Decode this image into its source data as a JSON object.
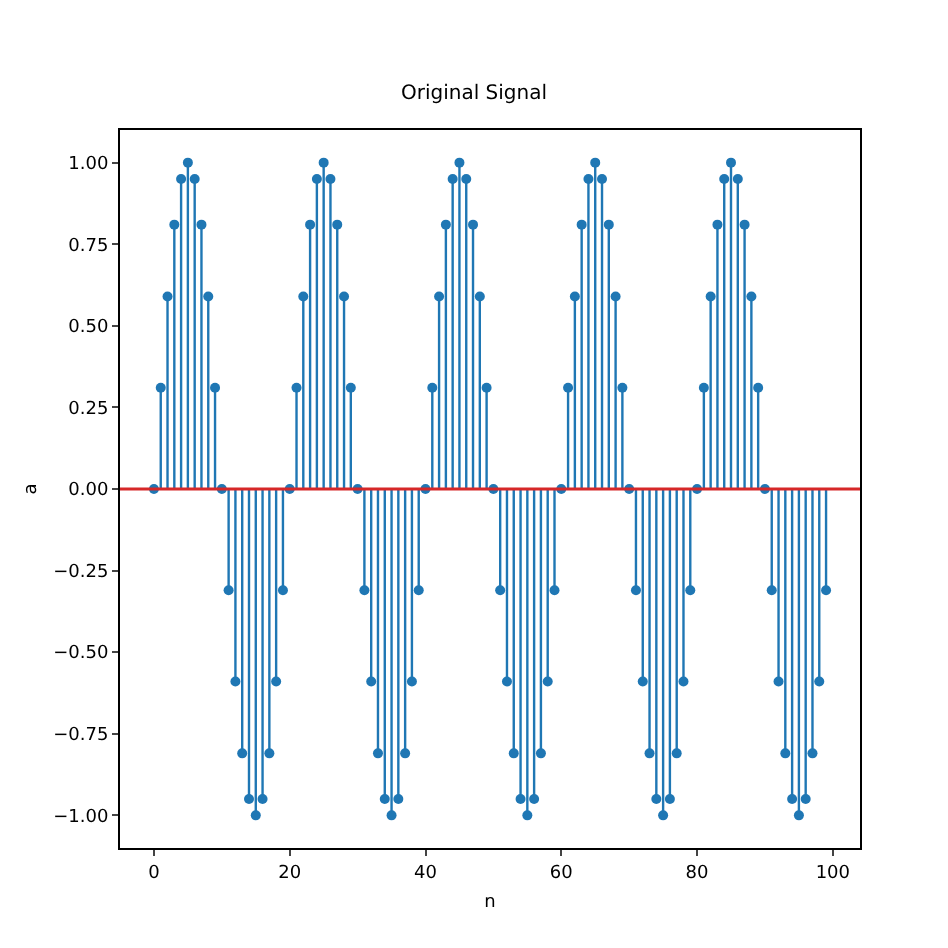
{
  "chart_data": {
    "type": "lollipop",
    "title": "Original Signal",
    "xlabel": "n",
    "ylabel": "a",
    "x": [
      0,
      1,
      2,
      3,
      4,
      5,
      6,
      7,
      8,
      9,
      10,
      11,
      12,
      13,
      14,
      15,
      16,
      17,
      18,
      19,
      20,
      21,
      22,
      23,
      24,
      25,
      26,
      27,
      28,
      29,
      30,
      31,
      32,
      33,
      34,
      35,
      36,
      37,
      38,
      39,
      40,
      41,
      42,
      43,
      44,
      45,
      46,
      47,
      48,
      49,
      50,
      51,
      52,
      53,
      54,
      55,
      56,
      57,
      58,
      59,
      60,
      61,
      62,
      63,
      64,
      65,
      66,
      67,
      68,
      69,
      70,
      71,
      72,
      73,
      74,
      75,
      76,
      77,
      78,
      79,
      80,
      81,
      82,
      83,
      84,
      85,
      86,
      87,
      88,
      89,
      90,
      91,
      92,
      93,
      94,
      95,
      96,
      97,
      98,
      99
    ],
    "series": [
      {
        "color": "#1f77b4",
        "values": [
          0,
          0.31,
          0.59,
          0.81,
          0.95,
          1,
          0.95,
          0.81,
          0.59,
          0.31,
          0,
          -0.31,
          -0.59,
          -0.81,
          -0.95,
          -1,
          -0.95,
          -0.81,
          -0.59,
          -0.31,
          0,
          0.31,
          0.59,
          0.81,
          0.95,
          1,
          0.95,
          0.81,
          0.59,
          0.31,
          0,
          -0.31,
          -0.59,
          -0.81,
          -0.95,
          -1,
          -0.95,
          -0.81,
          -0.59,
          -0.31,
          0,
          0.31,
          0.59,
          0.81,
          0.95,
          1,
          0.95,
          0.81,
          0.59,
          0.31,
          0,
          -0.31,
          -0.59,
          -0.81,
          -0.95,
          -1,
          -0.95,
          -0.81,
          -0.59,
          -0.31,
          0,
          0.31,
          0.59,
          0.81,
          0.95,
          1,
          0.95,
          0.81,
          0.59,
          0.31,
          0,
          -0.31,
          -0.59,
          -0.81,
          -0.95,
          -1,
          -0.95,
          -0.81,
          -0.59,
          -0.31,
          0,
          0.31,
          0.59,
          0.81,
          0.95,
          1,
          0.95,
          0.81,
          0.59,
          0.31,
          0,
          -0.31,
          -0.59,
          -0.81,
          -0.95,
          -1,
          -0.95,
          -0.81,
          -0.59,
          -0.31
        ]
      }
    ],
    "xlim": [
      -5,
      104
    ],
    "xticks": [
      0,
      20,
      40,
      60,
      80,
      100
    ],
    "ylim": [
      -1.1,
      1.1
    ],
    "yticks": [
      {
        "value": -1,
        "label": "−1.00"
      },
      {
        "value": -0.75,
        "label": "−0.75"
      },
      {
        "value": -0.5,
        "label": "−0.50"
      },
      {
        "value": -0.25,
        "label": "−0.25"
      },
      {
        "value": 0,
        "label": "0.00"
      },
      {
        "value": 0.25,
        "label": "0.25"
      },
      {
        "value": 0.5,
        "label": "0.50"
      },
      {
        "value": 0.75,
        "label": "0.75"
      },
      {
        "value": 1,
        "label": "1.00"
      }
    ],
    "ref_lines": [
      {
        "axis": "y",
        "value": 0,
        "color": "#d62728"
      }
    ],
    "marker": "circle",
    "grid": false
  }
}
